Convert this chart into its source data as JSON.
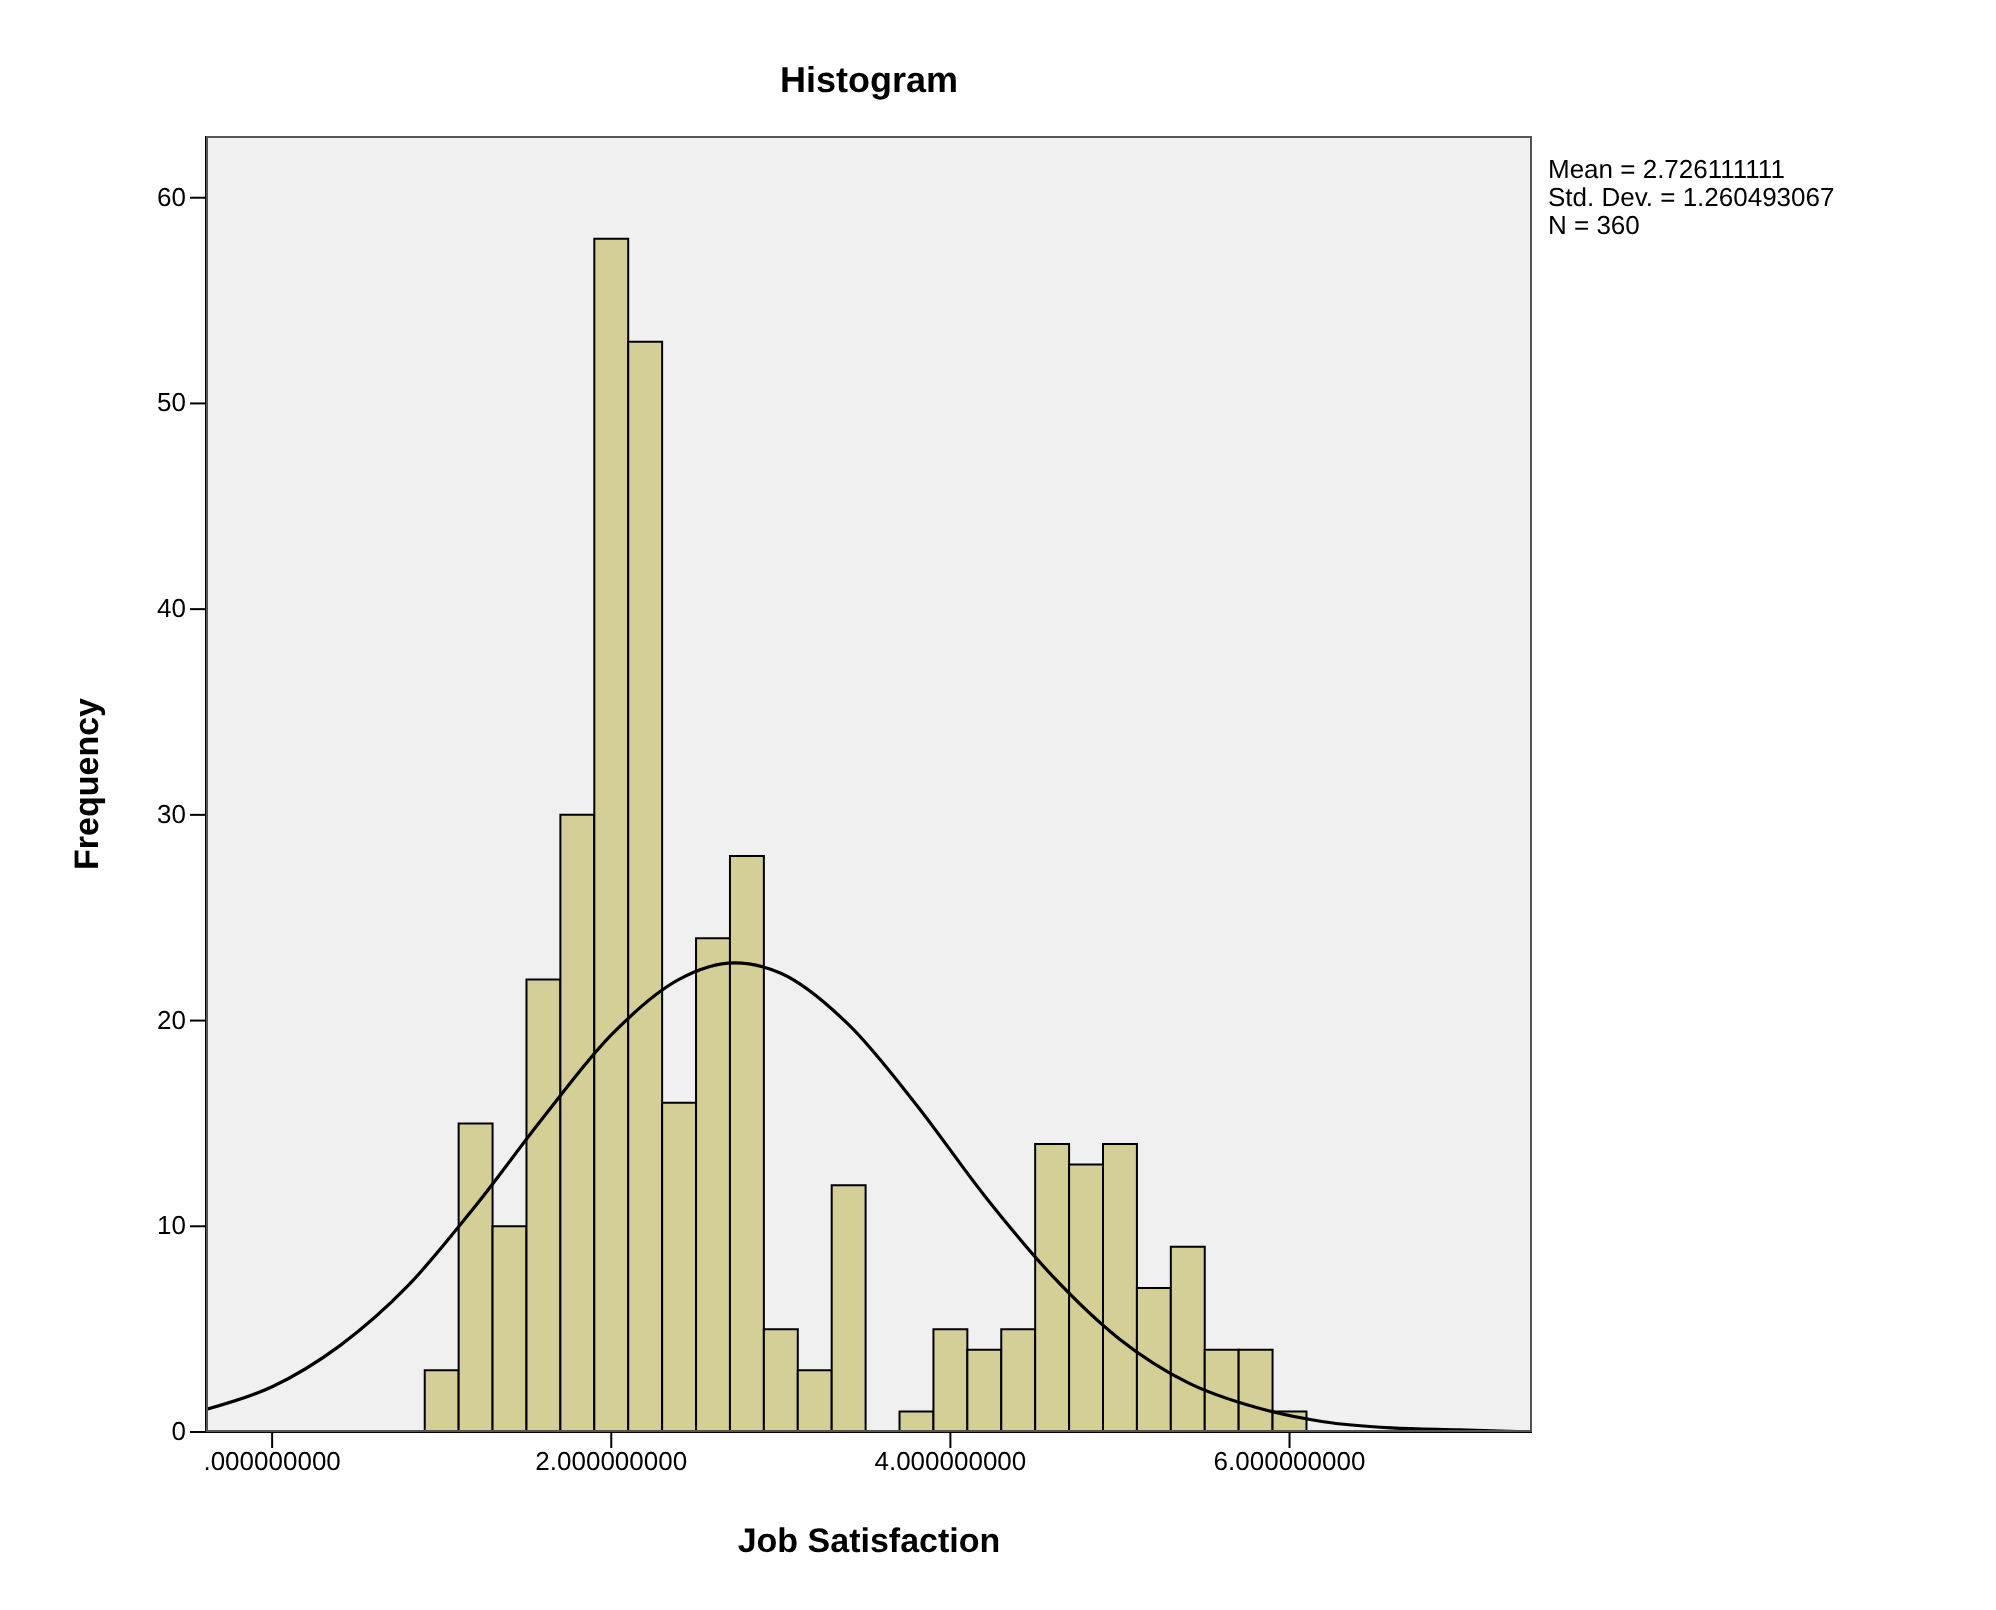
{
  "chart_data": {
    "type": "histogram",
    "title": "Histogram",
    "xlabel": "Job Satisfaction",
    "ylabel": "Frequency",
    "bins": [
      0.9,
      1.1,
      1.3,
      1.5,
      1.7,
      1.9,
      2.1,
      2.3,
      2.5,
      2.7,
      2.9,
      3.1,
      3.3,
      3.5,
      3.7,
      3.9,
      4.1,
      4.3,
      4.5,
      4.7,
      4.9,
      5.1,
      5.3,
      5.5,
      5.7,
      5.9,
      6.1
    ],
    "values": [
      3,
      15,
      10,
      22,
      30,
      58,
      53,
      16,
      24,
      28,
      5,
      3,
      12,
      0,
      1,
      5,
      4,
      5,
      14,
      13,
      14,
      7,
      9,
      4,
      4,
      1
    ],
    "color": "#d3cf97",
    "series": [
      {
        "type": "line",
        "color": "#000000",
        "x": [
          -0.39,
          0,
          0.4,
          0.8,
          1.2,
          1.6,
          2.0,
          2.4,
          2.726,
          3.0,
          3.4,
          3.8,
          4.2,
          4.6,
          5.0,
          5.4,
          5.8,
          6.2,
          6.6,
          7.0,
          7.43
        ],
        "values": [
          1.1,
          2.2,
          4.2,
          7.1,
          11.0,
          15.3,
          19.3,
          22.0,
          22.8,
          22.3,
          19.8,
          15.9,
          11.5,
          7.6,
          4.5,
          2.4,
          1.2,
          0.5,
          0.2,
          0.1,
          0.0
        ]
      }
    ],
    "xlim": [
      -0.39,
      7.43
    ],
    "xticks": [
      {
        "value": 0,
        "label": ".000000000"
      },
      {
        "value": 2,
        "label": "2.000000000"
      },
      {
        "value": 4,
        "label": "4.000000000"
      },
      {
        "value": 6,
        "label": "6.000000000"
      }
    ],
    "ylim": [
      0,
      63
    ],
    "yticks": [
      0,
      10,
      20,
      30,
      40,
      50,
      60
    ],
    "grid": false,
    "marker": "none",
    "line_style": "solid",
    "annotations": [
      "Mean = 2.726111111",
      "Std. Dev. = 1.260493067",
      "N = 360"
    ]
  }
}
